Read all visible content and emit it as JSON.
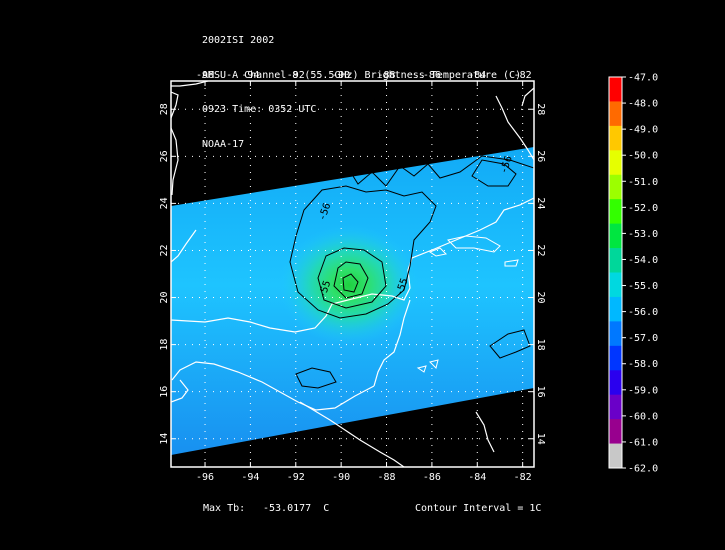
{
  "header": {
    "line1": "2002ISI 2002",
    "line2": "AMSU-A Channel 8 (55.5GHz) Brightness Temperature (C)",
    "line3": "0923 Time: 0352 UTC",
    "line4": "NOAA-17"
  },
  "map": {
    "lon_ticks": [
      "-96",
      "-94",
      "-92",
      "-90",
      "-88",
      "-86",
      "-84",
      "-82"
    ],
    "lat_ticks": [
      "14",
      "16",
      "18",
      "20",
      "22",
      "24",
      "26",
      "28"
    ],
    "lon_range": [
      -97.5,
      -81.5
    ],
    "lat_range": [
      12.8,
      29.2
    ],
    "contour_labels": [
      {
        "text": "-56",
        "lon": -82.6,
        "lat": 25.6
      },
      {
        "text": "-56",
        "lon": -90.6,
        "lat": 23.6
      },
      {
        "text": "-55",
        "lon": -87.2,
        "lat": 20.4
      },
      {
        "text": "-55",
        "lon": -90.6,
        "lat": 20.3
      }
    ],
    "colors": {
      "land_outline": "#ffffff",
      "swath_base": "#1ec8ff",
      "warm_core": "#22dd55",
      "contour": "#000000"
    }
  },
  "colorbar": {
    "ticks": [
      "-47.0",
      "-48.0",
      "-49.0",
      "-50.0",
      "-51.0",
      "-52.0",
      "-53.0",
      "-54.0",
      "-55.0",
      "-56.0",
      "-57.0",
      "-58.0",
      "-59.0",
      "-60.0",
      "-61.0",
      "-62.0"
    ],
    "range": [
      -62,
      -47
    ],
    "stops": [
      "#ff0000",
      "#ff6a00",
      "#ffc800",
      "#e6ff00",
      "#9cff00",
      "#33ff00",
      "#00e640",
      "#00d79a",
      "#00d8e0",
      "#00b8ff",
      "#0078ff",
      "#0036ff",
      "#2a00ee",
      "#6a00c8",
      "#98008e",
      "#c8c8c8"
    ]
  },
  "footer": {
    "max_label": "Max Tb:",
    "max_value": "-53.0177  C",
    "contour_interval": "Contour Interval = 1C"
  }
}
